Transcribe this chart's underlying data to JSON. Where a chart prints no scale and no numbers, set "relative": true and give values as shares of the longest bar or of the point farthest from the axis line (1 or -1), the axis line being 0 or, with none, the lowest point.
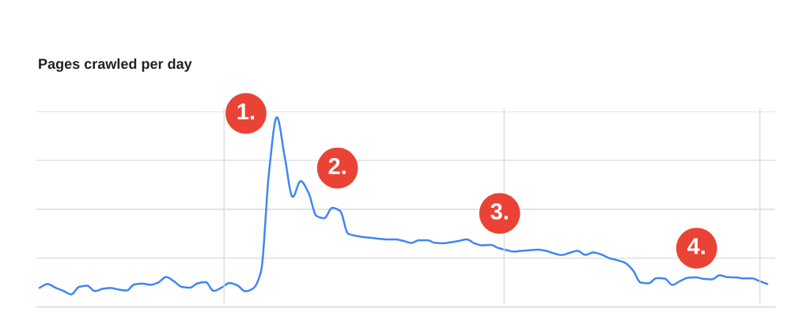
{
  "chart_data": {
    "type": "line",
    "title": "Pages crawled per day",
    "relative": true,
    "grid": "y",
    "categories": [
      null,
      null,
      null,
      null,
      null,
      null,
      null,
      null,
      null,
      null,
      null,
      null,
      null,
      null,
      null,
      null,
      null,
      null,
      null,
      null,
      null,
      null,
      null,
      null,
      null,
      null,
      null,
      null,
      null,
      null,
      null,
      null,
      null,
      null,
      null,
      null,
      null,
      null,
      null,
      null,
      null,
      null,
      null,
      null,
      null,
      null,
      null,
      null,
      null,
      null,
      null,
      null,
      null,
      null,
      null,
      null,
      null,
      null,
      null,
      null,
      null,
      null,
      null,
      null,
      null,
      null,
      null,
      null,
      null,
      null,
      null,
      null,
      null,
      null,
      null,
      null,
      null,
      null,
      null,
      null,
      null,
      null,
      null,
      null,
      null,
      null,
      null,
      null,
      null,
      null,
      null,
      null,
      null
    ],
    "series": [
      {
        "color": "#4285f4",
        "values": [
          0.101,
          0.121,
          0.102,
          0.085,
          0.067,
          0.106,
          0.112,
          0.084,
          0.096,
          0.1,
          0.092,
          0.087,
          0.119,
          0.123,
          0.117,
          0.129,
          0.158,
          0.135,
          0.106,
          0.102,
          0.125,
          0.131,
          0.085,
          0.102,
          0.126,
          0.114,
          0.083,
          0.098,
          0.188,
          0.706,
          1.0,
          0.789,
          0.58,
          0.663,
          0.602,
          0.48,
          0.468,
          0.522,
          0.506,
          0.387,
          0.375,
          0.368,
          0.364,
          0.359,
          0.356,
          0.356,
          0.348,
          0.338,
          0.352,
          0.352,
          0.338,
          0.336,
          0.341,
          0.348,
          0.356,
          0.335,
          0.325,
          0.327,
          0.311,
          0.3,
          0.292,
          0.296,
          0.299,
          0.302,
          0.296,
          0.283,
          0.274,
          0.285,
          0.296,
          0.275,
          0.287,
          0.277,
          0.258,
          0.247,
          0.233,
          0.194,
          0.129,
          0.125,
          0.152,
          0.15,
          0.117,
          0.137,
          0.154,
          0.156,
          0.148,
          0.146,
          0.167,
          0.157,
          0.156,
          0.151,
          0.151,
          0.137,
          0.121
        ]
      }
    ],
    "annotations": [
      "1.",
      "2.",
      "3.",
      "4."
    ]
  }
}
